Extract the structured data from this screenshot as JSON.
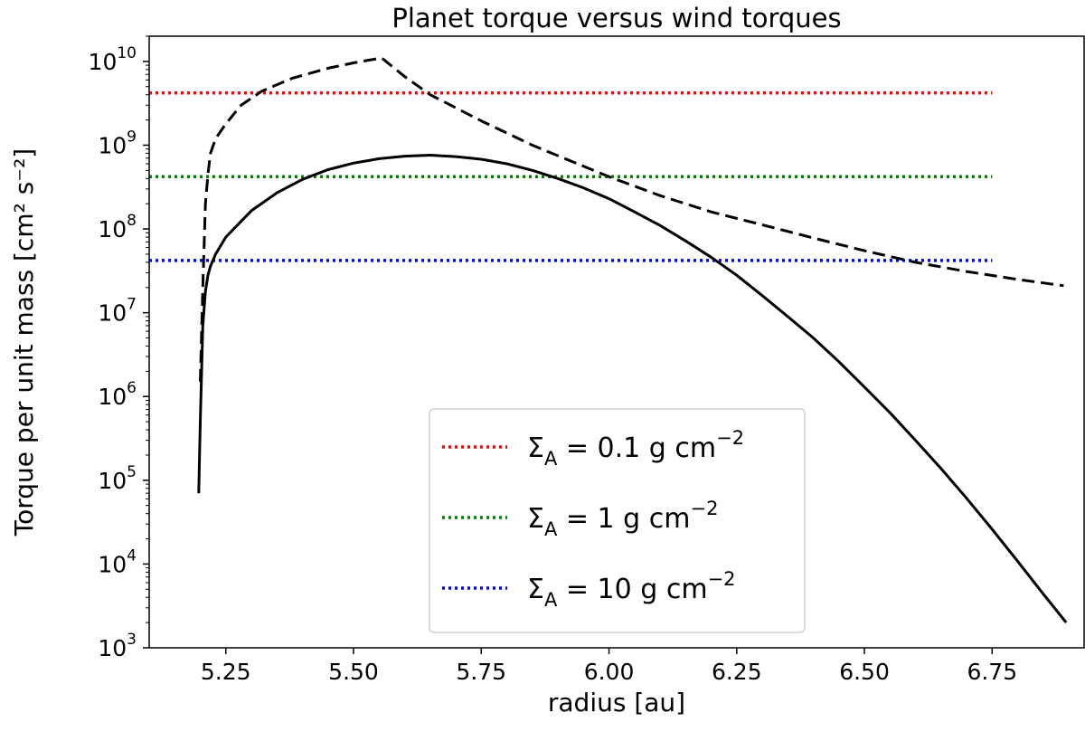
{
  "chart_data": {
    "type": "line",
    "title": "Planet torque versus wind torques",
    "xlabel": "radius [au]",
    "ylabel": "Torque per unit mass [cm² s⁻²]",
    "yscale": "log",
    "xlim": [
      5.1,
      6.93
    ],
    "ylim": [
      1000,
      20000000000
    ],
    "xticks": [
      {
        "value": 5.25,
        "label": "5.25"
      },
      {
        "value": 5.5,
        "label": "5.50"
      },
      {
        "value": 5.75,
        "label": "5.75"
      },
      {
        "value": 6.0,
        "label": "6.00"
      },
      {
        "value": 6.25,
        "label": "6.25"
      },
      {
        "value": 6.5,
        "label": "6.50"
      },
      {
        "value": 6.75,
        "label": "6.75"
      }
    ],
    "yticks": [
      {
        "exp": 3,
        "base": "10",
        "power": "3"
      },
      {
        "exp": 4,
        "base": "10",
        "power": "4"
      },
      {
        "exp": 5,
        "base": "10",
        "power": "5"
      },
      {
        "exp": 6,
        "base": "10",
        "power": "6"
      },
      {
        "exp": 7,
        "base": "10",
        "power": "7"
      },
      {
        "exp": 8,
        "base": "10",
        "power": "8"
      },
      {
        "exp": 9,
        "base": "10",
        "power": "9"
      },
      {
        "exp": 10,
        "base": "10",
        "power": "10"
      }
    ],
    "grid": false,
    "legend_position": "lower-center",
    "series": [
      {
        "name": "Σ_A = 0.1 g cm⁻²",
        "legend": {
          "sym": "Σ",
          "sub": "A",
          "eq": " = 0.1 g cm",
          "sup": "−2"
        },
        "style": "dotted",
        "color": "#ff0000",
        "x": [
          5.1,
          6.75
        ],
        "y": [
          4200000000,
          4200000000
        ]
      },
      {
        "name": "Σ_A = 1 g cm⁻²",
        "legend": {
          "sym": "Σ",
          "sub": "A",
          "eq": " = 1 g cm",
          "sup": "−2"
        },
        "style": "dotted",
        "color": "#008000",
        "x": [
          5.1,
          6.75
        ],
        "y": [
          420000000,
          420000000
        ]
      },
      {
        "name": "Σ_A = 10 g cm⁻²",
        "legend": {
          "sym": "Σ",
          "sub": "A",
          "eq": " = 10 g cm",
          "sup": "−2"
        },
        "style": "dotted",
        "color": "#0000ff",
        "x": [
          5.1,
          6.75
        ],
        "y": [
          42000000,
          42000000
        ]
      },
      {
        "style": "dashed",
        "color": "#000000",
        "x": [
          5.2,
          5.205,
          5.21,
          5.215,
          5.22,
          5.23,
          5.25,
          5.28,
          5.32,
          5.38,
          5.45,
          5.5,
          5.555,
          5.6,
          5.65,
          5.75,
          5.85,
          6.0,
          6.1,
          6.2,
          6.3,
          6.4,
          6.5,
          6.6,
          6.7,
          6.8,
          6.89
        ],
        "y": [
          1500000,
          20000000,
          200000000,
          450000000,
          800000000,
          1200000000,
          1800000000,
          3000000000,
          4400000000,
          6300000000,
          8300000000,
          9600000000,
          11000000000,
          6600000000,
          4000000000,
          1950000000,
          1000000000,
          420000000,
          250000000,
          160000000,
          112000000,
          78000000,
          55000000,
          40000000,
          31000000,
          25000000,
          21000000
        ]
      },
      {
        "style": "solid",
        "color": "#000000",
        "x": [
          5.197,
          5.2,
          5.205,
          5.21,
          5.215,
          5.22,
          5.23,
          5.25,
          5.3,
          5.35,
          5.4,
          5.45,
          5.5,
          5.55,
          5.6,
          5.65,
          5.7,
          5.75,
          5.8,
          5.85,
          5.9,
          5.95,
          6.0,
          6.05,
          6.1,
          6.15,
          6.2,
          6.25,
          6.3,
          6.35,
          6.4,
          6.45,
          6.5,
          6.55,
          6.6,
          6.65,
          6.7,
          6.75,
          6.8,
          6.85,
          6.895
        ],
        "y": [
          70000,
          500000,
          7000000,
          18000000,
          28000000,
          36000000,
          50000000,
          80000000,
          165000000,
          270000000,
          390000000,
          510000000,
          610000000,
          690000000,
          740000000,
          760000000,
          730000000,
          680000000,
          600000000,
          500000000,
          400000000,
          310000000,
          230000000,
          160000000,
          110000000,
          72000000,
          46000000,
          28000000,
          16000000,
          9000000,
          5000000,
          2600000,
          1300000,
          640000,
          300000,
          138000,
          61000,
          26000,
          10800,
          4400,
          2000
        ]
      }
    ]
  }
}
